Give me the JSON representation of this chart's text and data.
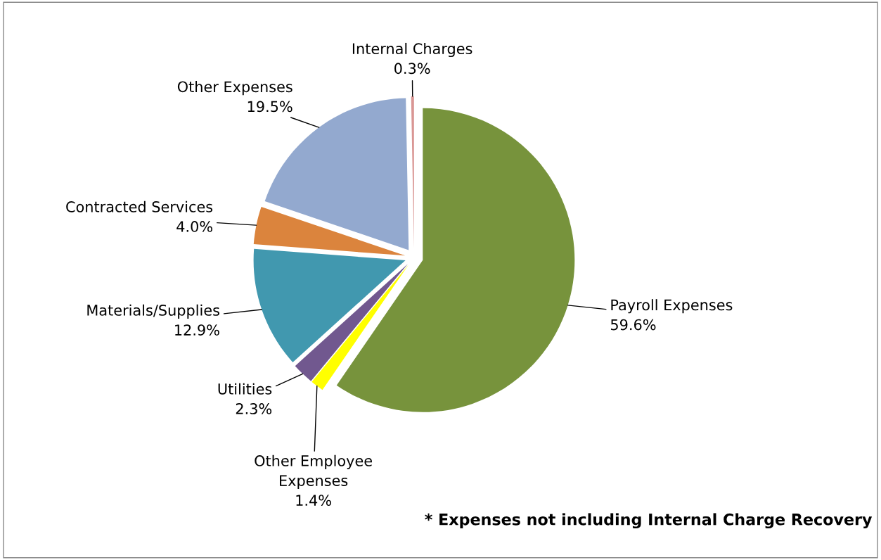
{
  "chart_data": {
    "type": "pie",
    "categories": [
      "Payroll Expenses",
      "Other Employee\nExpenses",
      "Utilities",
      "Materials/Supplies",
      "Contracted Services",
      "Other Expenses",
      "Internal Charges"
    ],
    "values": [
      59.6,
      1.4,
      2.3,
      12.9,
      4.0,
      19.5,
      0.3
    ],
    "value_labels": [
      "59.6%",
      "1.4%",
      "2.3%",
      "12.9%",
      "4.0%",
      "19.5%",
      "0.3%"
    ],
    "colors": [
      "#77933c",
      "#ffff00",
      "#71588f",
      "#4198af",
      "#db843d",
      "#93a9cf",
      "#d99694"
    ],
    "annotations": [
      "* Expenses not including Internal Charge Recovery"
    ],
    "legend": false
  }
}
